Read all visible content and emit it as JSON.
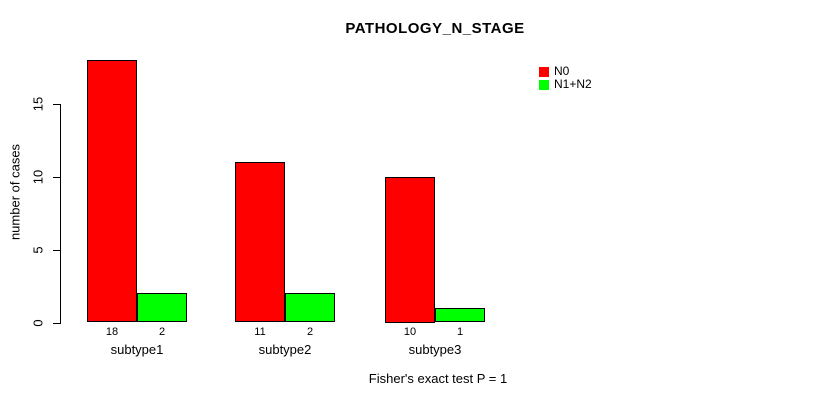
{
  "chart_data": {
    "type": "bar",
    "title": "PATHOLOGY_N_STAGE",
    "ylabel": "number of cases",
    "xlabel": "Fisher's exact test P = 1",
    "categories": [
      "subtype1",
      "subtype2",
      "subtype3"
    ],
    "series": [
      {
        "name": "N0",
        "color": "#ff0000",
        "values": [
          18,
          11,
          10
        ]
      },
      {
        "name": "N1+N2",
        "color": "#00ff00",
        "values": [
          2,
          2,
          1
        ]
      }
    ],
    "bar_value_labels_shown": true,
    "yticks": [
      "0",
      "5",
      "10",
      "15"
    ],
    "ytick_values": [
      0,
      5,
      10,
      15
    ],
    "ylim": [
      0,
      18
    ],
    "grid": false,
    "legend_position": "top-right",
    "bar_border_color": "#000000"
  },
  "colors": {
    "background": "#ffffff",
    "axis": "#000000",
    "text": "#000000"
  }
}
